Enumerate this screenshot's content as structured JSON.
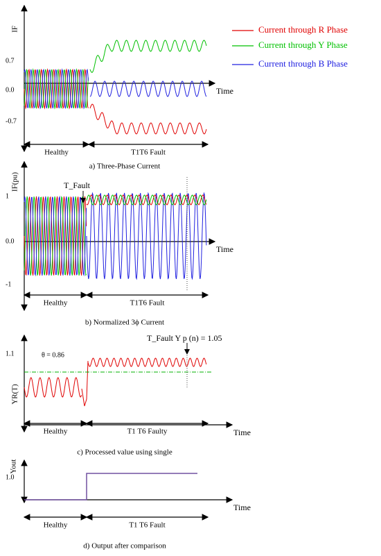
{
  "legend": [
    {
      "label": "Current through R Phase",
      "color": "#e00000"
    },
    {
      "label": "Current through Y Phase",
      "color": "#00c000"
    },
    {
      "label": "Current through B Phase",
      "color": "#2020e0"
    }
  ],
  "panels": [
    {
      "y_label": "IF",
      "ticks": [
        "0.7",
        "0.0",
        "-0.7"
      ],
      "x_label": "Time",
      "spans": [
        "Healthy",
        "T1T6 Fault"
      ],
      "caption": "a) Three-Phase Current"
    },
    {
      "y_label": "IF(pu)",
      "ticks": [
        "1",
        "0.0",
        "-1"
      ],
      "annotations": [
        "T_Fault"
      ],
      "x_label": "Time",
      "spans": [
        "Healthy",
        "T1T6 Fault"
      ],
      "caption": "b) Normalized 3ϕ Current"
    },
    {
      "y_label": "YR(T)",
      "ticks": [
        "1.1"
      ],
      "annotations": [
        "θ = 0.86",
        "T_Fault Y p (n) = 1.05"
      ],
      "x_label": "Time",
      "spans": [
        "Healthy",
        "T1 T6 Faulty"
      ],
      "caption": "c) Processed value using single"
    },
    {
      "y_label": "Yout",
      "ticks": [
        "1.0"
      ],
      "x_label": "Time",
      "spans": [
        "Healthy",
        "T1 T6 Fault"
      ],
      "caption": "d)   Output   after   comparison"
    }
  ]
}
